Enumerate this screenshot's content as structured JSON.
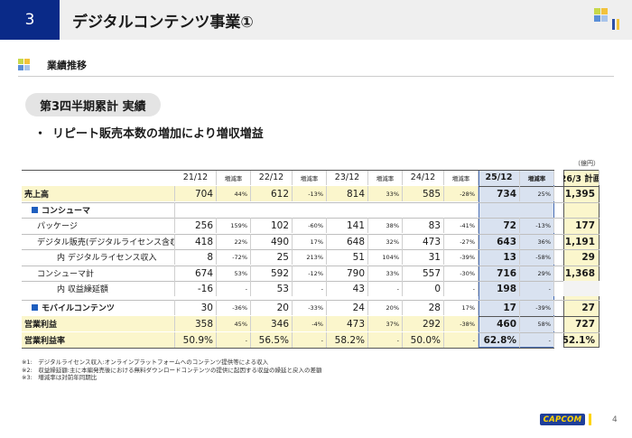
{
  "header": {
    "section_number": "3",
    "title": "デジタルコンテンツ事業①"
  },
  "sub_head": {
    "label": "業績推移"
  },
  "pill": {
    "label": "第3四半期累計 実績"
  },
  "bullet": {
    "mark": "・",
    "text": "リピート販売本数の増加により増収増益"
  },
  "unit": "（億円）",
  "table": {
    "headers": [
      "21/12",
      "増減率",
      "22/12",
      "増減率",
      "23/12",
      "増減率",
      "24/12",
      "増減率",
      "25/12",
      "増減率",
      "26/3 計画"
    ],
    "rows": [
      {
        "label": "売上高",
        "values": [
          "704",
          "44%",
          "612",
          "-13%",
          "814",
          "33%",
          "585",
          "-28%",
          "734",
          "25%",
          "1,395"
        ]
      },
      {
        "label": "コンシューマ",
        "values": []
      },
      {
        "label": "パッケージ",
        "values": [
          "256",
          "159%",
          "102",
          "-60%",
          "141",
          "38%",
          "83",
          "-41%",
          "72",
          "-13%",
          "177"
        ]
      },
      {
        "label": "デジタル販売(デジタルライセンス含む)",
        "values": [
          "418",
          "22%",
          "490",
          "17%",
          "648",
          "32%",
          "473",
          "-27%",
          "643",
          "36%",
          "1,191"
        ]
      },
      {
        "label": "内 デジタルライセンス収入",
        "values": [
          "8",
          "-72%",
          "25",
          "213%",
          "51",
          "104%",
          "31",
          "-39%",
          "13",
          "-58%",
          "29"
        ]
      },
      {
        "label": "コンシューマ計",
        "values": [
          "674",
          "53%",
          "592",
          "-12%",
          "790",
          "33%",
          "557",
          "-30%",
          "716",
          "29%",
          "1,368"
        ]
      },
      {
        "label": "内 収益繰延額",
        "values": [
          "-16",
          "-",
          "53",
          "-",
          "43",
          "-",
          "0",
          "-",
          "198",
          "-",
          ""
        ]
      },
      {
        "label": "モバイルコンテンツ",
        "values": [
          "30",
          "-36%",
          "20",
          "-33%",
          "24",
          "20%",
          "28",
          "17%",
          "17",
          "-39%",
          "27"
        ]
      },
      {
        "label": "営業利益",
        "values": [
          "358",
          "45%",
          "346",
          "-4%",
          "473",
          "37%",
          "292",
          "-38%",
          "460",
          "58%",
          "727"
        ]
      },
      {
        "label": "営業利益率",
        "values": [
          "50.9%",
          "-",
          "56.5%",
          "-",
          "58.2%",
          "-",
          "50.0%",
          "-",
          "62.8%",
          "-",
          "52.1%"
        ]
      }
    ]
  },
  "notes": [
    "※1:　デジタルライセンス収入:オンラインプラットフォームへのコンテンツ提供等による収入",
    "※2:　収益繰延額:主に本編発売後における無料ダウンロードコンテンツの提供に起因する収益の繰延と戻入の差額",
    "※3:　増減率は対前年同期比"
  ],
  "footer": {
    "logo_text": "CAPCOM",
    "page_number": "4"
  },
  "colors": {
    "navy": "#0a2a88",
    "highlight_blue": "#d9e2f0",
    "highlight_yellow": "#fbf6cc",
    "capcom_yellow": "#ffd400"
  }
}
